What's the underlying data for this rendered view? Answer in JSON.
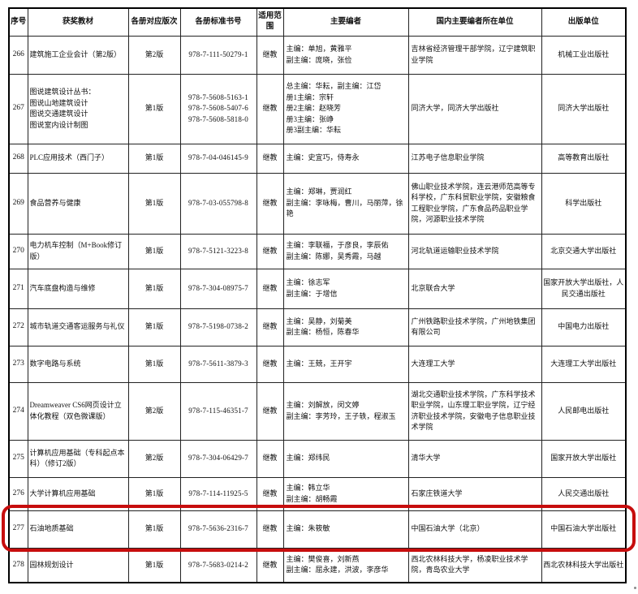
{
  "accent": {
    "highlight_color": "#c70d0d",
    "grid_color": "#222222",
    "text_color": "#111111"
  },
  "table": {
    "columns": [
      "序号",
      "获奖教材",
      "各册对应版次",
      "各册标准书号",
      "适用范围",
      "主要编者",
      "国内主要编者所在单位",
      "出版单位"
    ],
    "highlighted_row_no": "277",
    "rows": [
      {
        "no": "266",
        "title": "建筑施工企业会计（第2版）",
        "edition": "第2版",
        "isbn": "978-7-111-50279-1",
        "scope": "继教",
        "editors": "主编：单旭，黄雅平\n副主编：庞晓，张俭",
        "org": "吉林省经济管理干部学院，辽宁建筑职业学院",
        "publisher": "机械工业出版社"
      },
      {
        "no": "267",
        "title": "图说建筑设计丛书：\n图说山地建筑设计\n图说交通建筑设计\n图说室内设计制图",
        "edition": "第1版",
        "isbn": "978-7-5608-5163-1\n978-7-5608-5407-6\n978-7-5608-5818-0",
        "scope": "继教",
        "editors": "总主编：华耘，副主编：江岱\n册1主编：宗轩\n册2主编：赵晓芳\n册3主编：张峥\n册3副主编：华耘",
        "org": "同济大学，同济大学出版社",
        "publisher": "同济大学出版社"
      },
      {
        "no": "268",
        "title": "PLC应用技术（西门子）",
        "edition": "第1版",
        "isbn": "978-7-04-046145-9",
        "scope": "继教",
        "editors": "主编：史宜巧，侍寿永",
        "org": "江苏电子信息职业学院",
        "publisher": "高等教育出版社"
      },
      {
        "no": "269",
        "title": "食品营养与健康",
        "edition": "第1版",
        "isbn": "978-7-03-055798-8",
        "scope": "继教",
        "editors": "主编：郑琳，贾润红\n副主编：李咏梅，曹川，马丽萍，徐艳",
        "org": "佛山职业技术学院，连云港师范高等专科学校，广东科贸职业学院，安徽粮食工程职业学院，广东食品药品职业学院，河源职业技术学院",
        "publisher": "科学出版社"
      },
      {
        "no": "270",
        "title": "电力机车控制（M+Book修订版）",
        "edition": "第1版",
        "isbn": "978-7-5121-3223-8",
        "scope": "继教",
        "editors": "主编：李联福，于彦良，李辰佑\n副主编：陈娜，吴秀霞，马越",
        "org": "河北轨道运输职业技术学院",
        "publisher": "北京交通大学出版社"
      },
      {
        "no": "271",
        "title": "汽车底盘构造与维修",
        "edition": "第1版",
        "isbn": "978-7-304-08975-7",
        "scope": "继教",
        "editors": "主编：徐志军\n副主编：于增信",
        "org": "北京联合大学",
        "publisher": "国家开放大学出版社，人民交通出版社"
      },
      {
        "no": "272",
        "title": "城市轨道交通客运服务与礼仪",
        "edition": "第1版",
        "isbn": "978-7-5198-0738-2",
        "scope": "继教",
        "editors": "主编：吴静，刘菊美\n副主编：杨恒，陈春华",
        "org": "广州铁路职业技术学院，广州地铁集团有限公司",
        "publisher": "中国电力出版社"
      },
      {
        "no": "273",
        "title": "数字电路与系统",
        "edition": "第1版",
        "isbn": "978-7-5611-3879-3",
        "scope": "继教",
        "editors": "主编：王兢，王开宇",
        "org": "大连理工大学",
        "publisher": "大连理工大学出版社"
      },
      {
        "no": "274",
        "title": "Dreamweaver CS6网页设计立体化教程（双色微课版）",
        "edition": "第2版",
        "isbn": "978-7-115-46351-7",
        "scope": "继教",
        "editors": "主编：刘解放，闵文婷\n副主编：李芳玲，王子轶，程淑玉",
        "org": "湖北交通职业技术学院，广东科学技术职业学院，山东理工职业学院，辽宁经济职业技术学院，安徽电子信息职业技术学院",
        "publisher": "人民邮电出版社"
      },
      {
        "no": "275",
        "title": "计算机应用基础（专科起点本科）（修订2版）",
        "edition": "第2版",
        "isbn": "978-7-304-06429-7",
        "scope": "继教",
        "editors": "主编：郑纬民",
        "org": "清华大学",
        "publisher": "国家开放大学出版社"
      },
      {
        "no": "276",
        "title": "大学计算机应用基础",
        "edition": "第1版",
        "isbn": "978-7-114-11925-5",
        "scope": "继教",
        "editors": "主编：韩立华\n副主编：胡畅霞",
        "org": "石家庄铁道大学",
        "publisher": "人民交通出版社"
      },
      {
        "no": "277",
        "title": "石油地质基础",
        "edition": "第1版",
        "isbn": "978-7-5636-2316-7",
        "scope": "继教",
        "editors": "主编：朱筱敏",
        "org": "中国石油大学（北京）",
        "publisher": "中国石油大学出版社"
      },
      {
        "no": "278",
        "title": "园林规划设计",
        "edition": "第1版",
        "isbn": "978-7-5683-0214-2",
        "scope": "继教",
        "editors": "主编：樊俊喜，刘新燕\n副主编：屈永建，洪波，李彦华",
        "org": "西北农林科技大学，杨凌职业技术学院，青岛农业大学",
        "publisher": "西北农林科技大学出版社"
      }
    ]
  }
}
